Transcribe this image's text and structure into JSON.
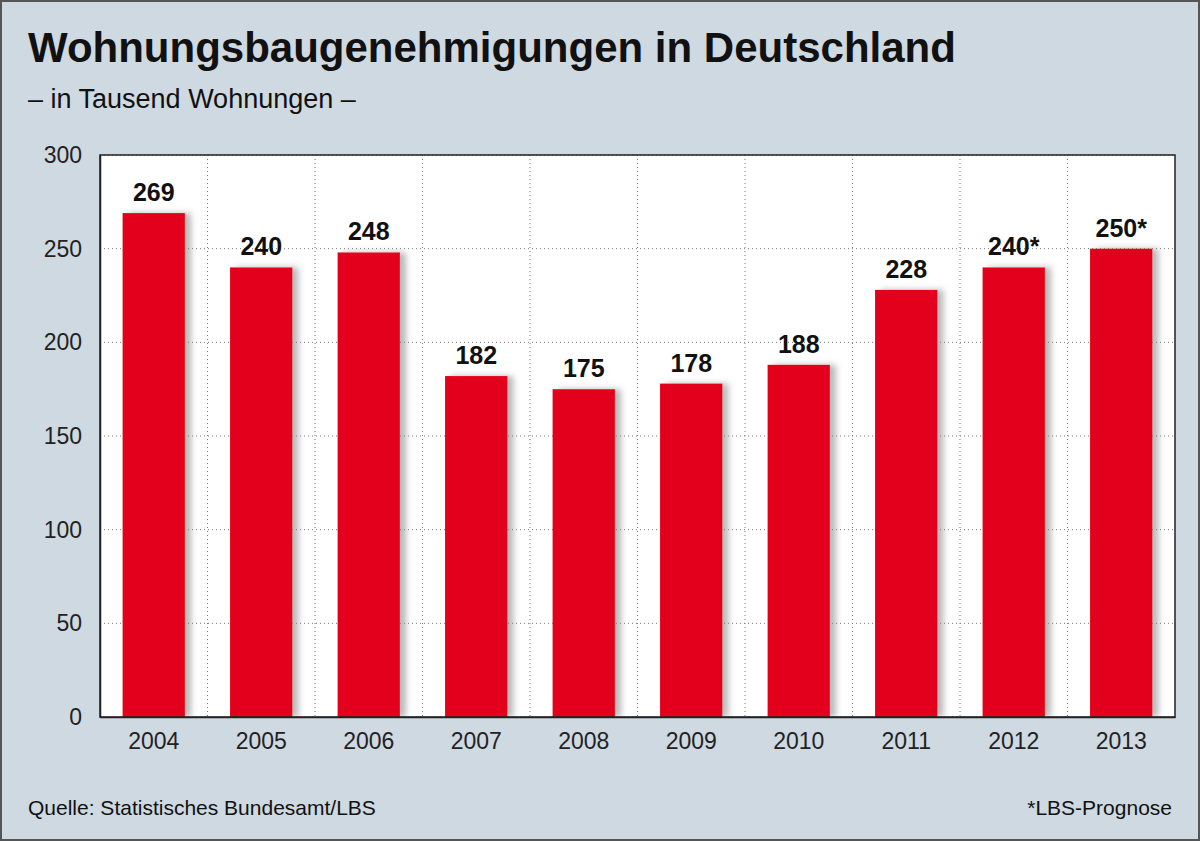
{
  "chart_data": {
    "type": "bar",
    "title": "Wohnungsbaugenehmigungen in Deutschland",
    "subtitle": "– in Tausend Wohnungen –",
    "categories": [
      "2004",
      "2005",
      "2006",
      "2007",
      "2008",
      "2009",
      "2010",
      "2011",
      "2012",
      "2013"
    ],
    "values": [
      269,
      240,
      248,
      182,
      175,
      178,
      188,
      228,
      240,
      250
    ],
    "value_labels": [
      "269",
      "240",
      "248",
      "182",
      "175",
      "178",
      "188",
      "228",
      "240*",
      "250*"
    ],
    "data_labels": true,
    "color": "#e2001a",
    "ylim": [
      0,
      300
    ],
    "yticks": [
      0,
      50,
      100,
      150,
      200,
      250,
      300
    ],
    "grid": true,
    "annotations": [
      "Quelle: Statistisches Bundesamt/LBS",
      "*LBS-Prognose"
    ]
  }
}
